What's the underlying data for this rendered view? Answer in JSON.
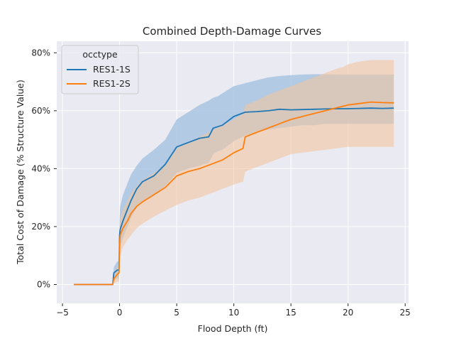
{
  "chart_data": {
    "type": "line",
    "title": "Combined Depth-Damage Curves",
    "xlabel": "Flood Depth (ft)",
    "ylabel": "Total Cost of Damage (% Structure Value)",
    "xlim": [
      -5.5,
      25.3
    ],
    "ylim": [
      -6.5,
      84
    ],
    "x_ticks": [
      -5,
      0,
      5,
      10,
      15,
      20,
      25
    ],
    "x_tick_labels": [
      "−5",
      "0",
      "5",
      "10",
      "15",
      "20",
      "25"
    ],
    "y_ticks": [
      0,
      20,
      40,
      60,
      80
    ],
    "y_tick_labels": [
      "0%",
      "20%",
      "40%",
      "60%",
      "80%"
    ],
    "grid": true,
    "legend": {
      "title": "occtype",
      "placement": "top-left"
    },
    "series": [
      {
        "name": "RES1-1S",
        "color": "#1f77b4",
        "band_color": "#a8c4e2",
        "x": [
          -4,
          -0.6,
          -0.5,
          -0.2,
          -0.05,
          0,
          0.05,
          0.3,
          0.7,
          1,
          1.5,
          2,
          3,
          4,
          5,
          6,
          7,
          7.8,
          8.2,
          8.6,
          9,
          10,
          11,
          12,
          13,
          14,
          15,
          16,
          17,
          18,
          19,
          20,
          21,
          22,
          23,
          24
        ],
        "y": [
          0,
          0,
          4,
          5,
          5,
          17,
          19,
          22,
          26,
          29,
          33,
          35.5,
          37.5,
          41.5,
          47.5,
          49,
          50.5,
          51,
          54,
          54.5,
          55,
          58,
          59.5,
          59.7,
          60,
          60.5,
          60.3,
          60.4,
          60.5,
          60.6,
          60.7,
          60.7,
          60.8,
          60.9,
          60.8,
          60.9
        ],
        "lower": [
          0,
          0,
          1.5,
          2,
          2,
          11,
          13,
          16,
          20,
          23,
          26.5,
          28.5,
          31,
          34,
          38.5,
          40,
          41,
          42,
          45,
          46,
          46.5,
          49.5,
          51.5,
          52.5,
          53.5,
          54,
          54.5,
          55,
          55,
          55.5,
          55.5,
          55.5,
          55.5,
          55.5,
          55.5,
          55.5
        ],
        "upper": [
          0,
          0,
          6,
          8,
          8,
          23,
          27,
          31,
          35,
          38,
          41,
          43.5,
          46.5,
          50,
          57,
          59.5,
          62,
          63.5,
          64.5,
          65,
          66,
          68.5,
          69.5,
          70.5,
          71.5,
          72,
          72.3,
          72.5,
          72.6,
          72.6,
          72.5,
          72.5,
          72.5,
          72.5,
          72.5,
          72.5
        ]
      },
      {
        "name": "RES1-2S",
        "color": "#ff7f0e",
        "band_color": "#f2c4a0",
        "x": [
          -4,
          -0.6,
          -0.5,
          -0.2,
          -0.05,
          0,
          0.05,
          0.3,
          0.7,
          1,
          1.5,
          2,
          3,
          4,
          5,
          6,
          7,
          8,
          9,
          10,
          10.8,
          11,
          12,
          13,
          14,
          15,
          16,
          17,
          18,
          19,
          19.5,
          20,
          21,
          22,
          23,
          24
        ],
        "y": [
          0,
          0,
          2,
          3.5,
          4,
          14,
          17,
          19.5,
          22,
          24.5,
          27,
          28.5,
          31,
          33.5,
          37.5,
          39,
          40,
          41.5,
          43,
          45.5,
          47,
          51,
          52.5,
          54,
          55.5,
          57,
          58,
          59,
          60,
          61,
          61.5,
          62,
          62.5,
          63,
          62.8,
          62.7
        ],
        "lower": [
          0,
          0,
          0.5,
          1,
          1,
          8,
          10,
          13,
          15.5,
          17,
          19.5,
          21,
          23.5,
          25.5,
          27.5,
          29,
          30,
          31.5,
          33,
          34.5,
          35.5,
          39,
          40.5,
          42,
          43.5,
          45,
          45.5,
          46,
          46.5,
          47,
          47.3,
          47.5,
          47.5,
          47.5,
          47.5,
          47.5
        ],
        "upper": [
          0,
          0,
          4,
          6,
          7,
          20,
          23,
          26,
          29,
          31.5,
          34,
          36,
          38.5,
          41,
          47,
          49,
          51,
          53,
          55,
          57,
          59,
          62,
          63.5,
          65.5,
          67,
          68.5,
          70,
          71.5,
          73,
          74.5,
          75,
          76,
          77,
          77.5,
          77.5,
          77.5
        ]
      }
    ]
  }
}
